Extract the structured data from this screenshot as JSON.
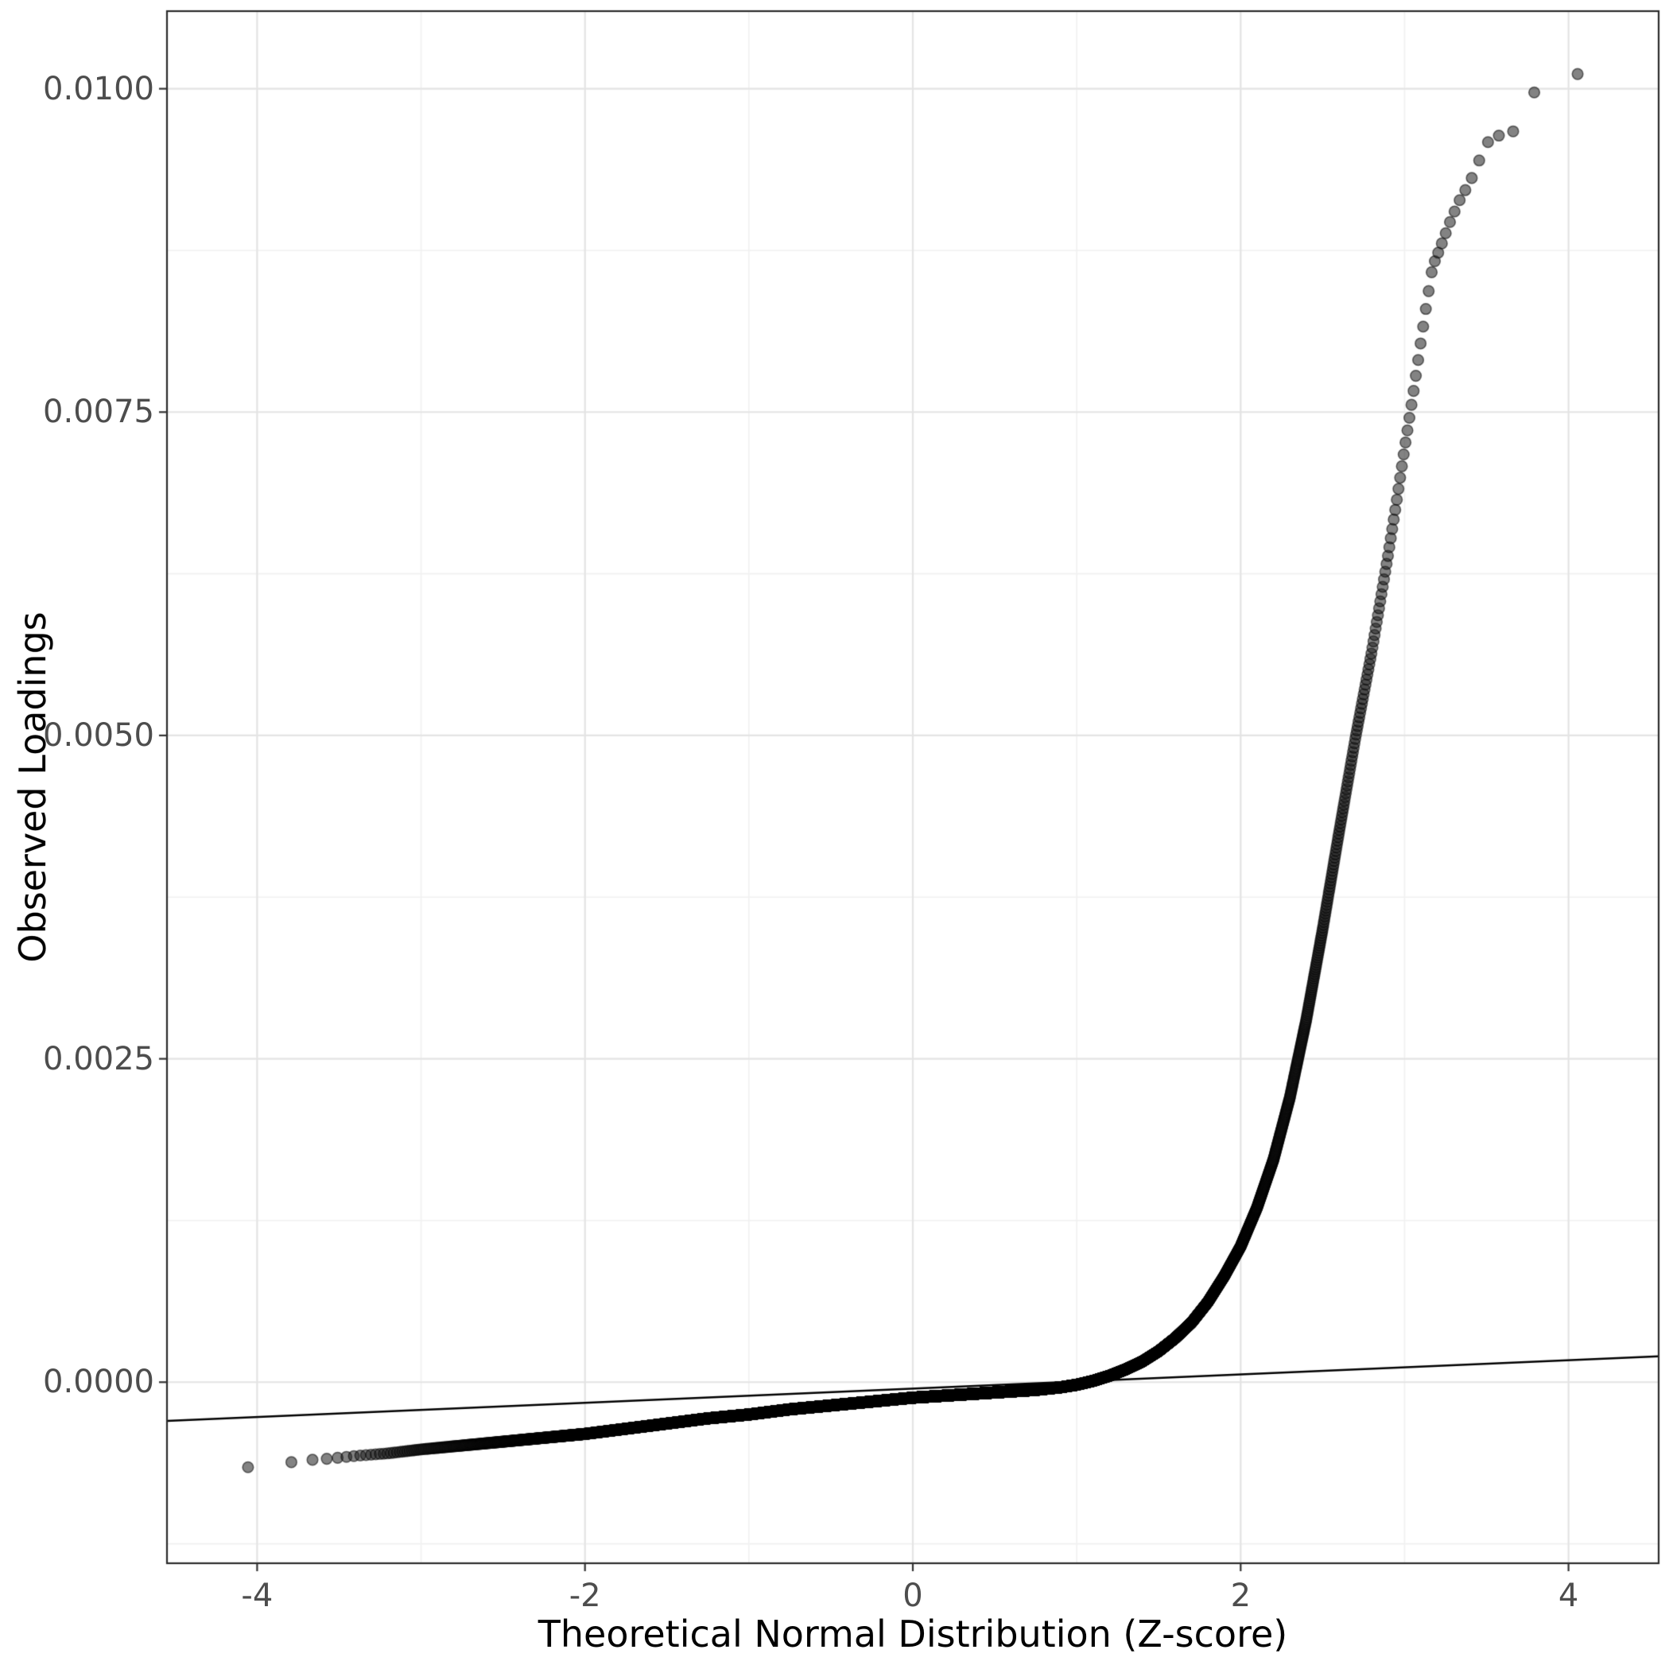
{
  "figure": {
    "background": "#FFFFFF",
    "panel_background": "#FFFFFF",
    "panel_border_color": "#2B2B2B",
    "tick_color": "#333333",
    "tick_label_color": "#4D4D4D",
    "axis_title_color": "#000000"
  },
  "chart_data": {
    "type": "scatter",
    "chart_kind": "qq-plot",
    "title": "",
    "xlabel": "Theoretical Normal Distribution (Z-score)",
    "ylabel": "Observed Loadings",
    "x_tick_labels": [
      "-4",
      "-2",
      "0",
      "2",
      "4"
    ],
    "x_tick_values": [
      -4,
      -2,
      0,
      2,
      4
    ],
    "y_tick_labels": [
      "0.0000",
      "0.0025",
      "0.0050",
      "0.0075",
      "0.0100"
    ],
    "y_tick_values": [
      0,
      0.0025,
      0.005,
      0.0075,
      0.01
    ],
    "x_minor_ticks": [
      -3,
      -1,
      1,
      3
    ],
    "y_minor_ticks": [
      -0.00125,
      0.00125,
      0.00375,
      0.00625,
      0.00875
    ],
    "xlim": [
      -4.55,
      4.55
    ],
    "ylim": [
      -0.0014,
      0.0106
    ],
    "grid": {
      "major_color": "#E4E4E4",
      "minor_color": "#F1F1F1",
      "on": true
    },
    "legend": "none",
    "n_points": 20000,
    "reference_line": {
      "slope": 5.5e-05,
      "intercept": -5e-05,
      "color": "#000000",
      "width": 2.5
    },
    "point_style": {
      "radius": 6.8,
      "fill": "rgba(30,30,30,0.55)",
      "stroke": "rgba(0,0,0,0.55)",
      "stroke_width": 1.5
    },
    "qq_curve_anchors": [
      [
        -4.07,
        -0.00066
      ],
      [
        -3.8,
        -0.00062
      ],
      [
        -3.66,
        -0.0006
      ],
      [
        -3.55,
        -0.00059
      ],
      [
        -3.4,
        -0.00057
      ],
      [
        -3.2,
        -0.00055
      ],
      [
        -3.0,
        -0.00052
      ],
      [
        -2.75,
        -0.00049
      ],
      [
        -2.5,
        -0.00046
      ],
      [
        -2.25,
        -0.00043
      ],
      [
        -2.0,
        -0.0004
      ],
      [
        -1.75,
        -0.00036
      ],
      [
        -1.5,
        -0.00032
      ],
      [
        -1.25,
        -0.00028
      ],
      [
        -1.0,
        -0.00025
      ],
      [
        -0.75,
        -0.00021
      ],
      [
        -0.5,
        -0.00018
      ],
      [
        -0.25,
        -0.00015
      ],
      [
        0.0,
        -0.00012
      ],
      [
        0.25,
        -0.0001
      ],
      [
        0.5,
        -8e-05
      ],
      [
        0.75,
        -6e-05
      ],
      [
        0.9,
        -4e-05
      ],
      [
        1.0,
        -2e-05
      ],
      [
        1.1,
        1e-05
      ],
      [
        1.2,
        5e-05
      ],
      [
        1.3,
        0.0001
      ],
      [
        1.4,
        0.00016
      ],
      [
        1.5,
        0.00024
      ],
      [
        1.6,
        0.00034
      ],
      [
        1.7,
        0.00046
      ],
      [
        1.8,
        0.00062
      ],
      [
        1.9,
        0.00082
      ],
      [
        2.0,
        0.00105
      ],
      [
        2.1,
        0.00135
      ],
      [
        2.2,
        0.00172
      ],
      [
        2.3,
        0.0022
      ],
      [
        2.4,
        0.0028
      ],
      [
        2.5,
        0.0035
      ],
      [
        2.6,
        0.00425
      ],
      [
        2.7,
        0.00498
      ],
      [
        2.8,
        0.00565
      ],
      [
        2.9,
        0.0064
      ],
      [
        2.95,
        0.0068
      ],
      [
        3.0,
        0.00722
      ],
      [
        3.05,
        0.00762
      ],
      [
        3.1,
        0.00805
      ],
      [
        3.13,
        0.0083
      ],
      [
        3.17,
        0.00862
      ],
      [
        3.22,
        0.00878
      ],
      [
        3.28,
        0.00898
      ],
      [
        3.34,
        0.00915
      ],
      [
        3.4,
        0.00928
      ],
      [
        3.45,
        0.00943
      ],
      [
        3.5,
        0.00958
      ],
      [
        3.56,
        0.00963
      ],
      [
        3.62,
        0.00966
      ],
      [
        3.7,
        0.00968
      ],
      [
        3.8,
        0.01
      ],
      [
        4.07,
        0.01012
      ]
    ]
  }
}
